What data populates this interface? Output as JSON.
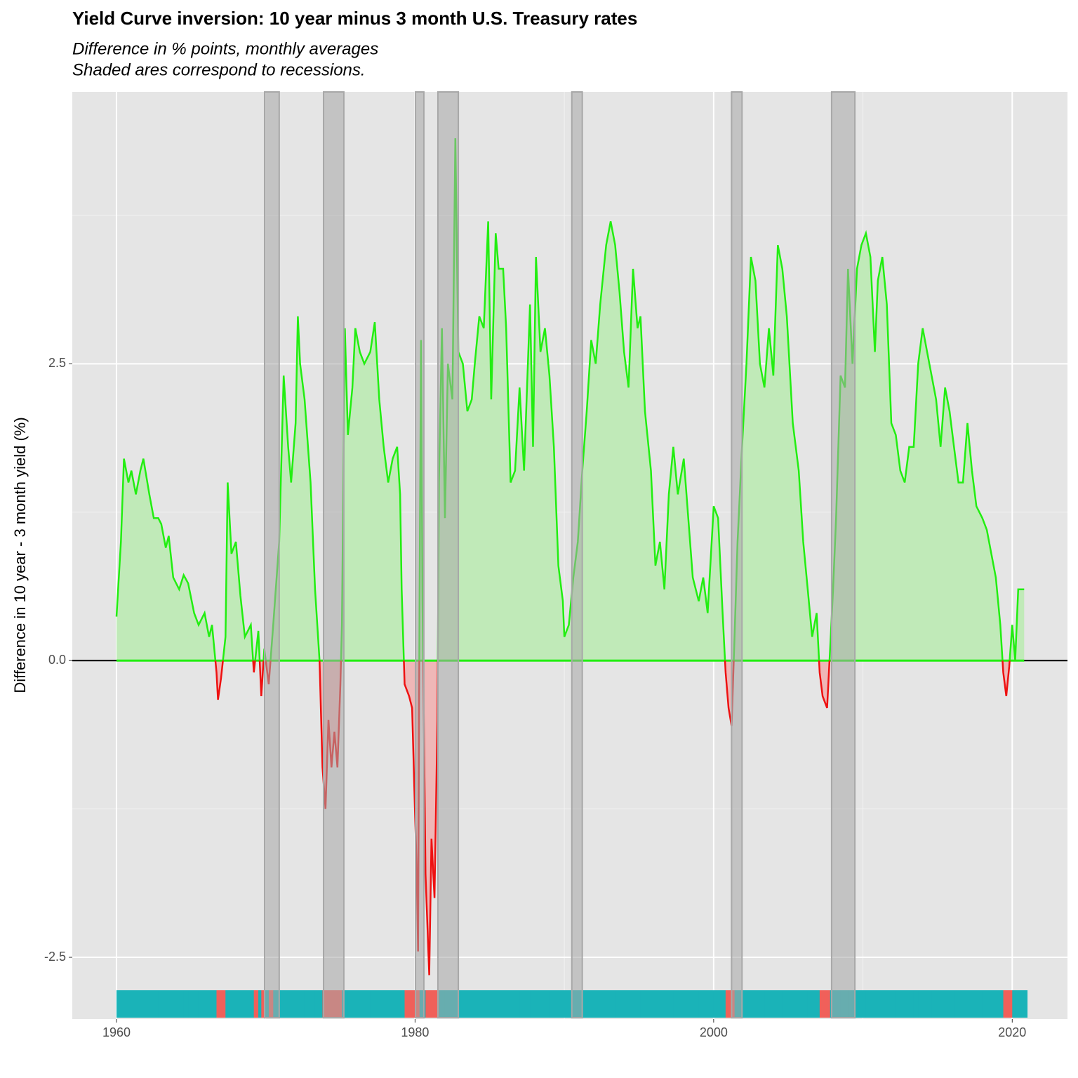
{
  "chart_data": {
    "type": "area-line",
    "title": "Yield Curve inversion: 10 year minus 3 month U.S. Treasury rates",
    "subtitle": [
      "Difference in % points, monthly averages",
      "Shaded ares correspond to recessions."
    ],
    "y_label": "Difference in 10 year - 3 month yield (%)",
    "xlim": [
      1957.04,
      2023.7
    ],
    "ylim": [
      -3.02,
      4.79
    ],
    "xticks": [
      1960,
      1980,
      2000,
      2020
    ],
    "yticks": [
      -2.5,
      {
        "value": 0,
        "label": "0.0"
      },
      2.5
    ],
    "grid": true,
    "colors": {
      "positive": "#22ee11",
      "negative": "#ee1111",
      "positive_fill": "#c0eab8",
      "negative_fill": "#efb7b7",
      "recession": "#a8a8a8",
      "strip_positive": "#1ab3b8",
      "strip_negative": "#f0605a",
      "background": "#e5e5e5"
    },
    "recessions": [
      [
        1969.92,
        1970.9
      ],
      [
        1973.87,
        1975.23
      ],
      [
        1980.03,
        1980.59
      ],
      [
        1981.53,
        1982.9
      ],
      [
        1990.5,
        1991.2
      ],
      [
        2001.2,
        2001.9
      ],
      [
        2007.9,
        2009.46
      ]
    ],
    "x": [
      1960.0,
      1960.3,
      1960.5,
      1960.8,
      1961.0,
      1961.3,
      1961.6,
      1961.8,
      1962.2,
      1962.5,
      1962.8,
      1963.0,
      1963.3,
      1963.5,
      1963.8,
      1964.2,
      1964.5,
      1964.8,
      1965.2,
      1965.5,
      1965.9,
      1966.2,
      1966.4,
      1966.7,
      1966.8,
      1967.0,
      1967.3,
      1967.45,
      1967.7,
      1968.0,
      1968.3,
      1968.6,
      1969.0,
      1969.2,
      1969.5,
      1969.7,
      1969.9,
      1970.2,
      1970.5,
      1970.9,
      1971.2,
      1971.5,
      1971.7,
      1972.0,
      1972.15,
      1972.3,
      1972.6,
      1973.0,
      1973.3,
      1973.6,
      1973.8,
      1974.0,
      1974.2,
      1974.4,
      1974.6,
      1974.8,
      1975.0,
      1975.1,
      1975.3,
      1975.5,
      1975.8,
      1976.0,
      1976.3,
      1976.6,
      1977.0,
      1977.3,
      1977.6,
      1977.9,
      1978.2,
      1978.5,
      1978.8,
      1979.0,
      1979.1,
      1979.3,
      1979.6,
      1979.8,
      1980.0,
      1980.1,
      1980.2,
      1980.3,
      1980.4,
      1980.5,
      1980.7,
      1980.95,
      1981.1,
      1981.3,
      1981.5,
      1981.6,
      1981.8,
      1982.0,
      1982.2,
      1982.5,
      1982.7,
      1982.9,
      1983.2,
      1983.5,
      1983.8,
      1984.0,
      1984.3,
      1984.6,
      1984.9,
      1985.1,
      1985.4,
      1985.6,
      1985.9,
      1986.1,
      1986.4,
      1986.7,
      1987.0,
      1987.3,
      1987.7,
      1987.9,
      1988.1,
      1988.4,
      1988.7,
      1989.0,
      1989.3,
      1989.6,
      1989.9,
      1990.0,
      1990.3,
      1990.6,
      1990.9,
      1991.2,
      1991.5,
      1991.8,
      1992.1,
      1992.4,
      1992.8,
      1993.1,
      1993.4,
      1993.7,
      1994.0,
      1994.3,
      1994.6,
      1994.9,
      1995.1,
      1995.4,
      1995.8,
      1996.1,
      1996.4,
      1996.7,
      1997.0,
      1997.3,
      1997.6,
      1998.0,
      1998.3,
      1998.6,
      1999.0,
      1999.3,
      1999.6,
      2000.0,
      2000.3,
      2000.6,
      2000.8,
      2001.0,
      2001.2,
      2001.4,
      2001.6,
      2001.9,
      2002.2,
      2002.5,
      2002.8,
      2003.1,
      2003.4,
      2003.7,
      2004.0,
      2004.3,
      2004.6,
      2004.9,
      2005.3,
      2005.7,
      2006.0,
      2006.3,
      2006.6,
      2006.9,
      2007.1,
      2007.3,
      2007.6,
      2007.8,
      2008.0,
      2008.2,
      2008.5,
      2008.8,
      2009.0,
      2009.3,
      2009.6,
      2009.9,
      2010.2,
      2010.5,
      2010.8,
      2011.0,
      2011.3,
      2011.6,
      2011.9,
      2012.2,
      2012.5,
      2012.8,
      2013.1,
      2013.4,
      2013.7,
      2014.0,
      2014.3,
      2014.6,
      2014.9,
      2015.2,
      2015.5,
      2015.8,
      2016.1,
      2016.4,
      2016.7,
      2017.0,
      2017.3,
      2017.6,
      2018.0,
      2018.3,
      2018.6,
      2018.9,
      2019.2,
      2019.4,
      2019.6,
      2019.8,
      2020.0,
      2020.2,
      2020.4,
      2020.6,
      2020.8
    ],
    "values": [
      0.37,
      1.0,
      1.7,
      1.5,
      1.6,
      1.4,
      1.6,
      1.7,
      1.4,
      1.2,
      1.2,
      1.15,
      0.95,
      1.05,
      0.7,
      0.6,
      0.72,
      0.65,
      0.4,
      0.3,
      0.4,
      0.2,
      0.3,
      -0.1,
      -0.33,
      -0.15,
      0.2,
      1.5,
      0.9,
      1.0,
      0.55,
      0.2,
      0.3,
      -0.1,
      0.25,
      -0.3,
      0.1,
      -0.2,
      0.3,
      1.0,
      2.4,
      1.8,
      1.5,
      2.0,
      2.9,
      2.5,
      2.2,
      1.5,
      0.6,
      0.0,
      -0.9,
      -1.25,
      -0.5,
      -0.9,
      -0.6,
      -0.9,
      -0.2,
      0.3,
      2.8,
      1.9,
      2.3,
      2.8,
      2.6,
      2.5,
      2.6,
      2.85,
      2.2,
      1.8,
      1.5,
      1.7,
      1.8,
      1.4,
      0.6,
      -0.2,
      -0.3,
      -0.4,
      -1.3,
      -1.7,
      -2.45,
      0.5,
      2.7,
      0.5,
      -1.8,
      -2.65,
      -1.5,
      -2.0,
      -0.5,
      1.5,
      2.8,
      1.2,
      2.5,
      2.2,
      4.4,
      2.6,
      2.5,
      2.1,
      2.2,
      2.5,
      2.9,
      2.8,
      3.7,
      2.2,
      3.6,
      3.3,
      3.3,
      2.8,
      1.5,
      1.6,
      2.3,
      1.6,
      3.0,
      1.8,
      3.4,
      2.6,
      2.8,
      2.4,
      1.8,
      0.8,
      0.5,
      0.2,
      0.3,
      0.7,
      1.0,
      1.6,
      2.1,
      2.7,
      2.5,
      3.0,
      3.5,
      3.7,
      3.5,
      3.1,
      2.6,
      2.3,
      3.3,
      2.8,
      2.9,
      2.1,
      1.6,
      0.8,
      1.0,
      0.6,
      1.4,
      1.8,
      1.4,
      1.7,
      1.2,
      0.7,
      0.5,
      0.7,
      0.4,
      1.3,
      1.2,
      0.4,
      -0.1,
      -0.4,
      -0.55,
      0.2,
      1.0,
      1.8,
      2.5,
      3.4,
      3.2,
      2.5,
      2.3,
      2.8,
      2.4,
      3.5,
      3.3,
      2.9,
      2.0,
      1.6,
      1.0,
      0.6,
      0.2,
      0.4,
      -0.1,
      -0.3,
      -0.4,
      0.1,
      0.6,
      1.2,
      2.4,
      2.3,
      3.3,
      2.5,
      3.3,
      3.5,
      3.6,
      3.4,
      2.6,
      3.2,
      3.4,
      3.0,
      2.0,
      1.9,
      1.6,
      1.5,
      1.8,
      1.8,
      2.5,
      2.8,
      2.6,
      2.4,
      2.2,
      1.8,
      2.3,
      2.1,
      1.8,
      1.5,
      1.5,
      2.0,
      1.6,
      1.3,
      1.2,
      1.1,
      0.9,
      0.7,
      0.3,
      -0.1,
      -0.3,
      -0.05,
      0.3,
      0.0,
      0.6,
      0.6,
      0.6
    ]
  }
}
